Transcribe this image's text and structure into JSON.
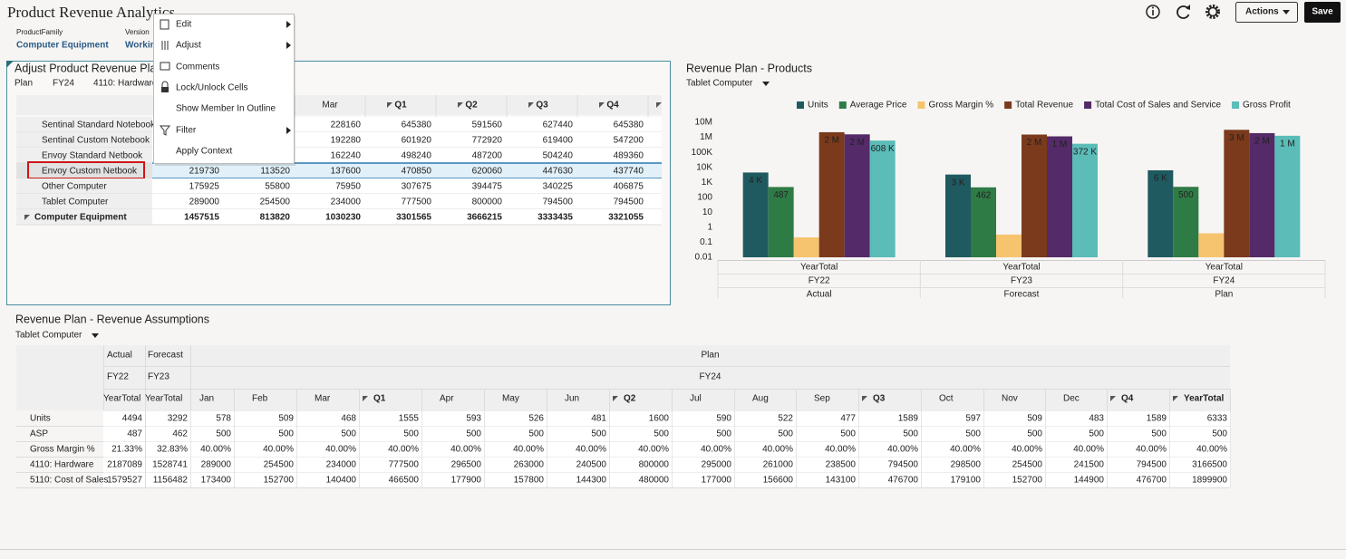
{
  "header": {
    "title": "Product Revenue Analytics",
    "pov": [
      {
        "label": "ProductFamily",
        "value": "Computer Equipment"
      },
      {
        "label": "Version",
        "value": "Working"
      }
    ],
    "buttons": [
      "Actions",
      "Save"
    ]
  },
  "context_menu": {
    "items": [
      "Edit",
      "Adjust",
      "Comments",
      "Lock/Unlock Cells",
      "Show Member In Outline",
      "Filter",
      "Apply Context"
    ]
  },
  "adjust_grid": {
    "title": "Adjust Product Revenue Plan",
    "pov": [
      "Plan",
      "FY24",
      "4110: Hardware"
    ],
    "columns": [
      null,
      null,
      "Mar",
      "Q1",
      "Q2",
      "Q3",
      "Q4"
    ],
    "rows": [
      {
        "label": "Sentinal Standard Notebook",
        "values": [
          null,
          null,
          228160,
          645380,
          591560,
          627440,
          645380
        ]
      },
      {
        "label": "Sentinal Custom Notebook",
        "values": [
          null,
          null,
          192280,
          601920,
          772920,
          619400,
          547200
        ]
      },
      {
        "label": "Envoy Standard Netbook",
        "values": [
          null,
          null,
          162240,
          498240,
          487200,
          504240,
          489360
        ]
      },
      {
        "label": "Envoy Custom Netbook",
        "values": [
          219730,
          113520,
          137600,
          470850,
          620060,
          447630,
          437740
        ]
      },
      {
        "label": "Other Computer",
        "values": [
          175925,
          55800,
          75950,
          307675,
          394475,
          340225,
          406875
        ]
      },
      {
        "label": "Tablet Computer",
        "values": [
          289000,
          254500,
          234000,
          777500,
          800000,
          794500,
          794500
        ]
      },
      {
        "label": "Computer Equipment",
        "values": [
          1457515,
          813820,
          1030230,
          3301565,
          3666215,
          3333435,
          3321055
        ]
      }
    ]
  },
  "chart_data": {
    "type": "bar",
    "title": "Revenue Plan - Products",
    "member": "Tablet Computer",
    "categories": [
      "YearTotal",
      "YearTotal",
      "YearTotal"
    ],
    "category_levels": [
      [
        "FY22",
        "FY23",
        "FY24"
      ],
      [
        "Actual",
        "Forecast",
        "Plan"
      ]
    ],
    "yscale": "log",
    "ylim": [
      0.01,
      10000000
    ],
    "yticks": [
      0.01,
      0.1,
      1,
      10,
      100,
      {
        "value": 1000,
        "label": "1K"
      },
      {
        "value": 10000,
        "label": "10K"
      },
      {
        "value": 100000,
        "label": "100K"
      },
      {
        "value": 1000000,
        "label": "1M"
      },
      {
        "value": 10000000,
        "label": "10M"
      }
    ],
    "grid": false,
    "legend": "top",
    "series": [
      {
        "name": "Units",
        "color": "#1f5a60",
        "values": [
          4494,
          3292,
          6333
        ],
        "value_labels": [
          "4 K",
          "3 K",
          "6 K"
        ]
      },
      {
        "name": "Average Price",
        "color": "#2f7b46",
        "values": [
          487,
          462,
          500
        ]
      },
      {
        "name": "Gross Margin %",
        "color": "#f6c46f",
        "values": [
          0.2133,
          0.3283,
          0.4
        ]
      },
      {
        "name": "Total Revenue",
        "color": "#7b3a1c",
        "values": [
          2187089,
          1528741,
          3166500
        ],
        "value_labels": [
          "2 M",
          "2 M",
          "3 M"
        ]
      },
      {
        "name": "Total Cost of Sales and Service",
        "color": "#542a68",
        "values": [
          1579527,
          1156482,
          1899900
        ],
        "value_labels": [
          "2 M",
          "1 M",
          "2 M"
        ]
      },
      {
        "name": "Gross Profit",
        "color": "#5bbcb8",
        "values": [
          607562,
          372259,
          1266600
        ],
        "value_labels": [
          "608 K",
          "372 K",
          "1 M"
        ]
      }
    ]
  },
  "assumptions": {
    "title": "Revenue Plan - Revenue Assumptions",
    "member": "Tablet Computer",
    "header_rows": [
      [
        "Actual",
        "Forecast",
        "Plan"
      ],
      [
        "FY22",
        "FY23",
        "FY24"
      ],
      [
        "YearTotal",
        "YearTotal",
        "Jan",
        "Feb",
        "Mar",
        "Q1",
        "Apr",
        "May",
        "Jun",
        "Q2",
        "Jul",
        "Aug",
        "Sep",
        "Q3",
        "Oct",
        "Nov",
        "Dec",
        "Q4",
        "YearTotal"
      ]
    ],
    "rows": [
      {
        "label": "Units",
        "values": [
          "4494",
          "3292",
          "578",
          "509",
          "468",
          "1555",
          "593",
          "526",
          "481",
          "1600",
          "590",
          "522",
          "477",
          "1589",
          "597",
          "509",
          "483",
          "1589",
          "6333"
        ]
      },
      {
        "label": "ASP",
        "values": [
          "487",
          "462",
          "500",
          "500",
          "500",
          "500",
          "500",
          "500",
          "500",
          "500",
          "500",
          "500",
          "500",
          "500",
          "500",
          "500",
          "500",
          "500",
          "500"
        ]
      },
      {
        "label": "Gross Margin %",
        "values": [
          "21.33%",
          "32.83%",
          "40.00%",
          "40.00%",
          "40.00%",
          "40.00%",
          "40.00%",
          "40.00%",
          "40.00%",
          "40.00%",
          "40.00%",
          "40.00%",
          "40.00%",
          "40.00%",
          "40.00%",
          "40.00%",
          "40.00%",
          "40.00%",
          "40.00%"
        ]
      },
      {
        "label": "4110: Hardware",
        "values": [
          "2187089",
          "1528741",
          "289000",
          "254500",
          "234000",
          "777500",
          "296500",
          "263000",
          "240500",
          "800000",
          "295000",
          "261000",
          "238500",
          "794500",
          "298500",
          "254500",
          "241500",
          "794500",
          "3166500"
        ]
      },
      {
        "label": "5110: Cost of Sales",
        "values": [
          "1579527",
          "1156482",
          "173400",
          "152700",
          "140400",
          "466500",
          "177900",
          "157800",
          "144300",
          "480000",
          "177000",
          "156600",
          "143100",
          "476700",
          "179100",
          "152700",
          "144900",
          "476700",
          "1899900"
        ]
      }
    ]
  }
}
